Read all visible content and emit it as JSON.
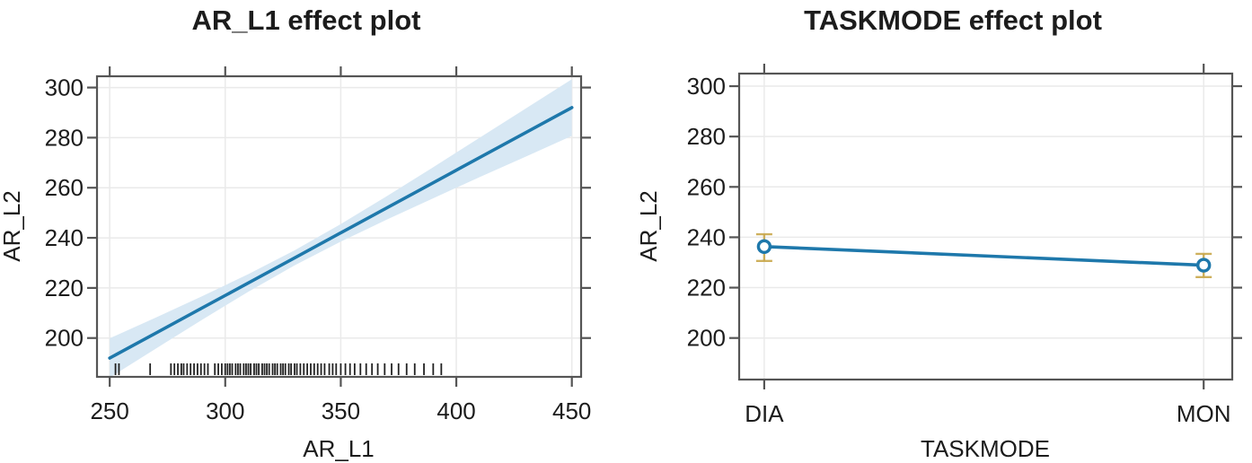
{
  "figure": {
    "background": "#ffffff",
    "frame_color": "#555555",
    "grid_color": "#eaeaea",
    "text_color": "#1c1c1c"
  },
  "chart_data": [
    {
      "id": "left",
      "type": "line",
      "title": "AR_L1 effect plot",
      "xlabel": "AR_L1",
      "ylabel": "AR_L2",
      "xlim": [
        244.5,
        454
      ],
      "ylim": [
        184.5,
        304.5
      ],
      "x_ticks": [
        250,
        300,
        350,
        400,
        450
      ],
      "y_ticks": [
        200,
        220,
        240,
        260,
        280,
        300
      ],
      "grid": true,
      "legend": "none",
      "colors": {
        "line": "#1e78ab",
        "band": "#d8e8f4",
        "rug": "#222222",
        "grid": "#eaeaea",
        "frame": "#555555"
      },
      "series": {
        "fit": {
          "x": [
            250,
            270,
            290,
            310,
            330,
            350,
            370,
            390,
            410,
            430,
            450
          ],
          "y": [
            192,
            202,
            212,
            222,
            232,
            242,
            252,
            262,
            272,
            282,
            292
          ]
        },
        "band": {
          "x": [
            250,
            270,
            290,
            310,
            330,
            350,
            370,
            390,
            410,
            430,
            450
          ],
          "upper": [
            199.9,
            208.2,
            216.7,
            225.5,
            235.0,
            245.5,
            256.7,
            268.2,
            279.9,
            291.6,
            303.3
          ],
          "lower": [
            184.2,
            195.8,
            207.3,
            218.5,
            229.0,
            238.5,
            247.3,
            255.8,
            264.2,
            272.4,
            280.7
          ]
        },
        "rug_x": [
          252.5,
          254,
          267.5,
          276.5,
          278,
          279.5,
          281,
          282,
          283.5,
          285,
          286.5,
          288,
          289.5,
          291,
          292.5,
          295.5,
          297,
          298.5,
          300,
          301,
          302,
          303,
          304.5,
          305.5,
          306.5,
          308,
          309,
          310,
          311,
          312.5,
          313.5,
          314.5,
          316,
          317,
          318,
          319,
          320.5,
          321.5,
          322.5,
          324,
          325,
          326,
          327.5,
          328.5,
          330,
          331,
          332.5,
          334,
          335.5,
          337,
          338.5,
          340,
          341.5,
          343,
          345,
          346.5,
          348,
          350,
          352,
          354,
          356,
          358.5,
          361,
          363.5,
          366,
          369,
          372,
          375,
          378.5,
          382,
          386,
          390,
          393.5
        ]
      }
    },
    {
      "id": "right",
      "type": "line",
      "title": "TASKMODE effect plot",
      "xlabel": "TASKMODE",
      "ylabel": "AR_L2",
      "categories": [
        "DIA",
        "MON"
      ],
      "category_x": [
        1,
        2
      ],
      "xlim": [
        0.943,
        2.065
      ],
      "ylim": [
        183.5,
        305
      ],
      "y_ticks": [
        200,
        220,
        240,
        260,
        280,
        300
      ],
      "grid": true,
      "legend": "none",
      "colors": {
        "line": "#1e78ab",
        "errorbar": "#c9a84c",
        "grid": "#eaeaea",
        "frame": "#555555"
      },
      "points": [
        {
          "label": "DIA",
          "fit": 236.3,
          "lower": 230.6,
          "upper": 241.2
        },
        {
          "label": "MON",
          "fit": 228.9,
          "lower": 224.2,
          "upper": 233.4
        }
      ]
    }
  ]
}
